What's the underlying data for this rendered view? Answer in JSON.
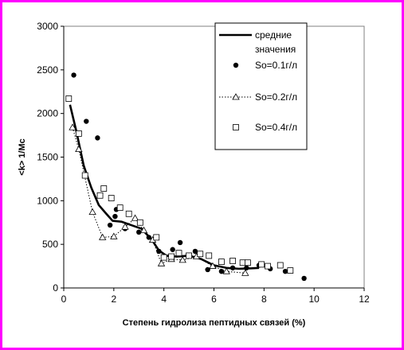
{
  "chart_data": {
    "type": "scatter",
    "xlabel": "Степень гидролиза пептидных связей (%)",
    "ylabel": "<k> 1/Mc",
    "xlim": [
      0,
      12
    ],
    "ylim": [
      0,
      3000
    ],
    "x_ticks": [
      0,
      2,
      4,
      6,
      8,
      10,
      12
    ],
    "y_ticks": [
      0,
      500,
      1000,
      1500,
      2000,
      2500,
      3000
    ],
    "grid": false,
    "legend_position": "top-right",
    "series": [
      {
        "name": "средние значения",
        "style": "thick-line",
        "color": "#000000",
        "x": [
          0.25,
          0.5,
          0.8,
          1.1,
          1.4,
          1.7,
          1.95,
          2.3,
          2.7,
          3.1,
          3.5,
          3.8,
          4.1,
          4.5,
          5.0,
          5.5,
          6.0,
          6.5,
          7.0,
          7.5,
          7.8
        ],
        "y": [
          2100,
          1800,
          1400,
          1150,
          950,
          850,
          770,
          760,
          720,
          680,
          560,
          430,
          370,
          360,
          370,
          330,
          260,
          230,
          220,
          225,
          230
        ]
      },
      {
        "name": "So=0.1г/л",
        "style": "circle",
        "color": "#000000",
        "x": [
          0.4,
          0.9,
          1.35,
          1.85,
          2.05,
          2.1,
          2.45,
          3.0,
          3.4,
          3.8,
          4.35,
          4.65,
          5.25,
          5.75,
          6.3,
          6.75,
          7.3,
          7.8,
          8.25,
          8.85,
          9.6
        ],
        "y": [
          2440,
          1910,
          1720,
          720,
          820,
          900,
          680,
          640,
          580,
          420,
          440,
          520,
          420,
          210,
          190,
          230,
          230,
          260,
          220,
          190,
          110
        ]
      },
      {
        "name": "So=0.2г/л",
        "style": "dotted-triangle",
        "color": "#000000",
        "x": [
          0.35,
          0.6,
          1.15,
          1.55,
          2.0,
          2.45,
          2.85,
          3.2,
          3.55,
          3.9,
          4.3,
          4.75,
          5.3,
          5.95,
          6.5,
          7.25
        ],
        "y": [
          1840,
          1590,
          870,
          580,
          590,
          700,
          800,
          660,
          550,
          280,
          330,
          320,
          360,
          250,
          190,
          170
        ]
      },
      {
        "name": "So=0.4г/л",
        "style": "square",
        "color": "#000000",
        "x": [
          0.2,
          0.6,
          0.85,
          1.45,
          1.6,
          1.9,
          2.25,
          2.6,
          3.05,
          3.7,
          4.0,
          4.3,
          4.6,
          5.0,
          5.45,
          5.8,
          6.3,
          6.75,
          7.15,
          7.35,
          7.9,
          8.15,
          8.65,
          9.05
        ],
        "y": [
          2170,
          1770,
          1290,
          1060,
          1140,
          1030,
          920,
          850,
          750,
          580,
          350,
          360,
          400,
          370,
          390,
          370,
          300,
          310,
          290,
          290,
          270,
          250,
          260,
          200
        ]
      }
    ]
  }
}
